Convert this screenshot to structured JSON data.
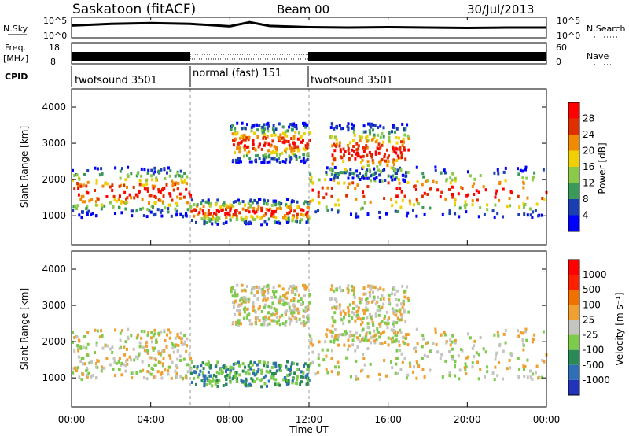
{
  "header": {
    "station": "Saskatoon (fitACF)",
    "beam": "Beam 00",
    "date": "30/Jul/2013"
  },
  "noise_panel": {
    "left_label": "N.Sky",
    "right_label": "N.Search",
    "left_ticks": [
      "10^5",
      "10^0"
    ],
    "right_ticks": [
      "10^5",
      "10^0"
    ]
  },
  "freq_panel": {
    "left_label_top": "Freq.",
    "left_label_bottom": "[MHz]",
    "right_label": "Nave",
    "left_ticks": [
      "18",
      "8"
    ],
    "right_ticks": [
      "60",
      "0"
    ]
  },
  "cpid_panel": {
    "label": "CPID",
    "segments": [
      {
        "label": "twofsound 3501",
        "start_h": 0,
        "end_h": 6
      },
      {
        "label": "normal (fast) 151",
        "start_h": 6,
        "end_h": 12
      },
      {
        "label": "twofsound 3501",
        "start_h": 12,
        "end_h": 24
      }
    ]
  },
  "power_panel": {
    "ylabel": "Slant Range [km]",
    "colorbar_label": "Power [dB]",
    "colorbar_ticks": [
      "28",
      "24",
      "20",
      "16",
      "12",
      "8",
      "4"
    ],
    "colors": [
      "#0000ff",
      "#1a3fb3",
      "#3a9a5a",
      "#8ac94a",
      "#f0d000",
      "#f08a00",
      "#e03000",
      "#ff0000"
    ]
  },
  "velocity_panel": {
    "ylabel": "Slant Range [km]",
    "colorbar_label": "Velocity [m s⁻¹]",
    "colorbar_ticks": [
      "1000",
      "500",
      "100",
      "25",
      "-25",
      "-100",
      "-500",
      "-1000"
    ],
    "colors": [
      "#2233bb",
      "#2f6fb5",
      "#2a8a55",
      "#7ccb4a",
      "#c4c4c0",
      "#f0a030",
      "#f07000",
      "#ff2000",
      "#ff0000"
    ]
  },
  "x_axis": {
    "label": "Time UT",
    "ticks": [
      "00:00",
      "04:00",
      "08:00",
      "12:00",
      "16:00",
      "20:00",
      "00:00"
    ]
  },
  "chart_data": [
    {
      "type": "line",
      "title": "Saskatoon (fitACF)",
      "ylabel": "N.Sky",
      "x": [
        0,
        2,
        4,
        6,
        8,
        9,
        10,
        12,
        14,
        16,
        18,
        20,
        22,
        24
      ],
      "series": [
        {
          "name": "N.Sky",
          "values": [
            3,
            3.4,
            3.6,
            3.4,
            2.8,
            3.8,
            2.9,
            2.6,
            2.5,
            2.6,
            2.5,
            2.4,
            2.5,
            2.5
          ]
        }
      ],
      "ylim": [
        0,
        5
      ]
    },
    {
      "type": "bar",
      "ylabel": "Freq. [MHz]",
      "x_ranges": [
        [
          0,
          6
        ],
        [
          6,
          12
        ],
        [
          12,
          24
        ]
      ],
      "values": [
        10.5,
        10.5,
        10.5
      ],
      "ylim": [
        8,
        18
      ]
    },
    {
      "type": "heatmap",
      "ylabel": "Slant Range [km]",
      "colorbar": "Power [dB]",
      "xlim": [
        0,
        24
      ],
      "ylim": [
        200,
        4500
      ],
      "y_ticks": [
        1000,
        2000,
        3000,
        4000
      ]
    },
    {
      "type": "heatmap",
      "ylabel": "Slant Range [km]",
      "colorbar": "Velocity [m s⁻¹]",
      "xlim": [
        0,
        24
      ],
      "ylim": [
        200,
        4500
      ],
      "y_ticks": [
        1000,
        2000,
        3000,
        4000
      ]
    }
  ]
}
